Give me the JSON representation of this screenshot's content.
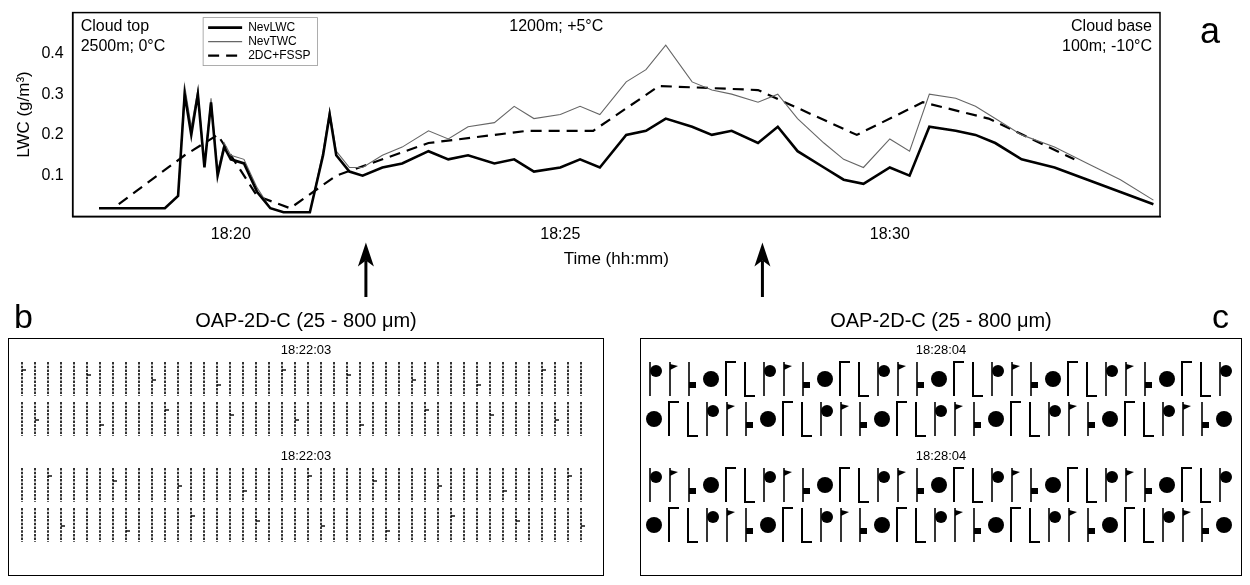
{
  "chart_data": {
    "type": "line",
    "panel_label": "a",
    "x_label": "Time (hh:mm)",
    "y_label": "LWC (g/m³)",
    "xlim": [
      1097.6,
      1114.1
    ],
    "ylim": [
      0,
      0.5
    ],
    "xticks": [
      {
        "value": 1100,
        "label": "18:20"
      },
      {
        "value": 1105,
        "label": "18:25"
      },
      {
        "value": 1110,
        "label": "18:30"
      }
    ],
    "yticks": [
      0.1,
      0.2,
      0.3,
      0.4
    ],
    "grid": false,
    "legend": "top",
    "annotations": [
      [
        "Cloud top",
        "2500m; 0°C"
      ],
      [
        "1200m; +5°C"
      ],
      [
        "Cloud base",
        "100m; -10°C"
      ]
    ],
    "series": [
      {
        "name": "NevLWC",
        "color": "#000000",
        "line_style": "solid",
        "x": [
          1098.0,
          1098.5,
          1099.0,
          1099.2,
          1099.3,
          1099.4,
          1099.5,
          1099.6,
          1099.7,
          1099.8,
          1099.9,
          1100.0,
          1100.2,
          1100.4,
          1100.6,
          1100.8,
          1101.0,
          1101.2,
          1101.4,
          1101.5,
          1101.6,
          1101.8,
          1102.0,
          1102.3,
          1102.6,
          1103.0,
          1103.3,
          1103.6,
          1104.0,
          1104.3,
          1104.6,
          1105.0,
          1105.3,
          1105.6,
          1106.0,
          1106.3,
          1106.6,
          1107.0,
          1107.3,
          1107.6,
          1108.0,
          1108.3,
          1108.6,
          1109.0,
          1109.3,
          1109.6,
          1110.0,
          1110.3,
          1110.6,
          1111.0,
          1111.3,
          1111.6,
          1112.0,
          1112.5,
          1113.0,
          1113.5,
          1114.0
        ],
        "values": [
          0.02,
          0.02,
          0.02,
          0.05,
          0.3,
          0.2,
          0.3,
          0.12,
          0.28,
          0.1,
          0.17,
          0.14,
          0.13,
          0.06,
          0.02,
          0.01,
          0.01,
          0.01,
          0.15,
          0.25,
          0.15,
          0.11,
          0.1,
          0.12,
          0.13,
          0.16,
          0.14,
          0.15,
          0.13,
          0.14,
          0.11,
          0.12,
          0.14,
          0.12,
          0.2,
          0.21,
          0.24,
          0.22,
          0.2,
          0.21,
          0.18,
          0.22,
          0.16,
          0.12,
          0.09,
          0.08,
          0.12,
          0.1,
          0.22,
          0.21,
          0.2,
          0.18,
          0.14,
          0.12,
          0.09,
          0.06,
          0.03
        ]
      },
      {
        "name": "NevTWC",
        "color": "#666666",
        "line_style": "solid",
        "x": [
          1098.0,
          1098.5,
          1099.0,
          1099.2,
          1099.3,
          1099.4,
          1099.5,
          1099.6,
          1099.7,
          1099.8,
          1099.9,
          1100.0,
          1100.2,
          1100.4,
          1100.6,
          1100.8,
          1101.0,
          1101.2,
          1101.4,
          1101.5,
          1101.6,
          1101.8,
          1102.0,
          1102.3,
          1102.6,
          1103.0,
          1103.3,
          1103.6,
          1104.0,
          1104.3,
          1104.6,
          1105.0,
          1105.3,
          1105.6,
          1106.0,
          1106.3,
          1106.6,
          1107.0,
          1107.3,
          1107.6,
          1108.0,
          1108.3,
          1108.6,
          1109.0,
          1109.3,
          1109.6,
          1110.0,
          1110.3,
          1110.6,
          1111.0,
          1111.3,
          1111.6,
          1112.0,
          1112.5,
          1113.0,
          1113.5,
          1114.0
        ],
        "values": [
          0.02,
          0.02,
          0.02,
          0.05,
          0.32,
          0.22,
          0.31,
          0.13,
          0.29,
          0.11,
          0.18,
          0.15,
          0.14,
          0.07,
          0.02,
          0.01,
          0.01,
          0.01,
          0.16,
          0.26,
          0.16,
          0.12,
          0.12,
          0.15,
          0.17,
          0.21,
          0.19,
          0.22,
          0.23,
          0.27,
          0.24,
          0.25,
          0.27,
          0.25,
          0.33,
          0.36,
          0.42,
          0.33,
          0.31,
          0.3,
          0.28,
          0.3,
          0.24,
          0.18,
          0.14,
          0.12,
          0.19,
          0.16,
          0.3,
          0.29,
          0.27,
          0.24,
          0.2,
          0.17,
          0.13,
          0.09,
          0.04
        ]
      },
      {
        "name": "2DC+FSSP",
        "color": "#000000",
        "line_style": "dashed",
        "x": [
          1098.3,
          1099.3,
          1099.8,
          1100.4,
          1100.9,
          1101.6,
          1103.0,
          1104.5,
          1105.5,
          1106.5,
          1108.0,
          1109.5,
          1110.5,
          1111.5,
          1112.8
        ],
        "values": [
          0.03,
          0.15,
          0.2,
          0.05,
          0.02,
          0.1,
          0.18,
          0.21,
          0.21,
          0.32,
          0.31,
          0.2,
          0.28,
          0.24,
          0.14
        ]
      }
    ]
  },
  "panels": [
    {
      "label": "b",
      "title": "OAP-2D-C (25 - 800 μm)",
      "time_mark": 1102.05,
      "timestamps": [
        "18:22:03",
        "18:22:03"
      ]
    },
    {
      "label": "c",
      "title": "OAP-2D-C (25 - 800 μm)",
      "time_mark": 1108.067,
      "timestamps": [
        "18:28:04",
        "18:28:04"
      ]
    }
  ]
}
